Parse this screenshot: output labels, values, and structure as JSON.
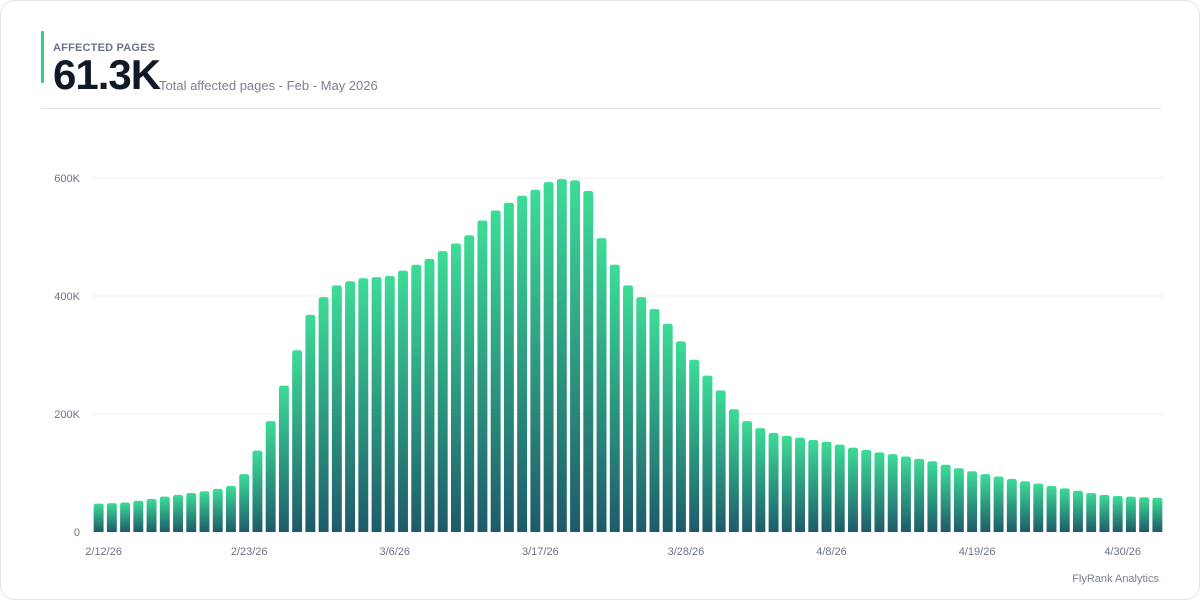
{
  "header": {
    "label": "AFFECTED PAGES",
    "value": "61.3K",
    "subtitle": "Total affected pages - Feb - May 2026"
  },
  "footer": {
    "brand": "FlyRank Analytics"
  },
  "colors": {
    "accent": "#2fd08c",
    "bar_top": "#3ddc97",
    "bar_bottom": "#1e5a6a",
    "grid": "#eef0f2",
    "axis_text": "#6b7385"
  },
  "chart_data": {
    "type": "bar",
    "ylim": [
      0,
      600000
    ],
    "yticks": [
      0,
      200000,
      400000,
      600000
    ],
    "ytick_labels": [
      "0",
      "200K",
      "400K",
      "600K"
    ],
    "xtick_labels": [
      {
        "index": 0,
        "label": "2/12/26"
      },
      {
        "index": 11,
        "label": "2/23/26"
      },
      {
        "index": 22,
        "label": "3/6/26"
      },
      {
        "index": 33,
        "label": "3/17/26"
      },
      {
        "index": 44,
        "label": "3/28/26"
      },
      {
        "index": 55,
        "label": "4/8/26"
      },
      {
        "index": 66,
        "label": "4/19/26"
      },
      {
        "index": 77,
        "label": "4/30/26"
      }
    ],
    "grid": true,
    "x_start": "2026-02-12",
    "values": [
      48000,
      49000,
      50000,
      53000,
      56000,
      60000,
      63000,
      66000,
      69000,
      73000,
      78000,
      98000,
      138000,
      188000,
      248000,
      308000,
      368000,
      398000,
      418000,
      425000,
      430000,
      432000,
      434000,
      443000,
      453000,
      463000,
      476000,
      489000,
      503000,
      528000,
      545000,
      558000,
      570000,
      580000,
      593000,
      598000,
      596000,
      578000,
      498000,
      453000,
      418000,
      398000,
      378000,
      353000,
      323000,
      292000,
      265000,
      240000,
      208000,
      188000,
      176000,
      168000,
      163000,
      160000,
      156000,
      153000,
      148000,
      143000,
      139000,
      135000,
      132000,
      128000,
      124000,
      120000,
      114000,
      108000,
      103000,
      98000,
      94000,
      90000,
      86000,
      82000,
      78000,
      74000,
      70000,
      66000,
      63000,
      61000,
      60000,
      59000,
      58000
    ]
  }
}
